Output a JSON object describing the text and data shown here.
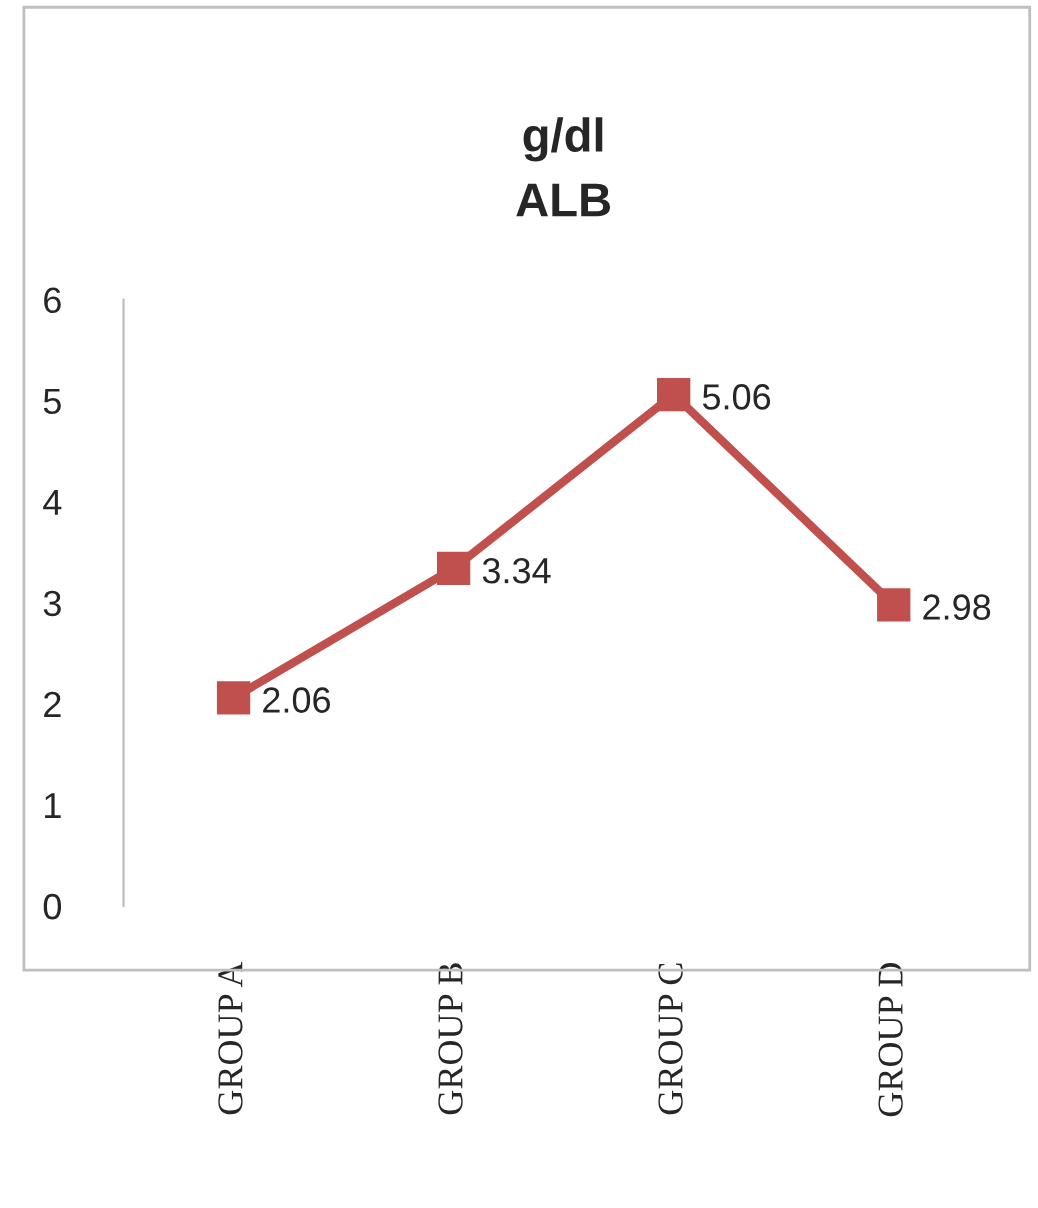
{
  "chart_data": {
    "type": "line",
    "title": "g/dl\nALB",
    "categories": [
      "GROUP A",
      "GROUP B",
      "GROUP C",
      "GROUP D"
    ],
    "series": [
      {
        "color": "#c0504d",
        "values": [
          2.06,
          3.34,
          5.06,
          2.98
        ]
      }
    ],
    "ylim": [
      0,
      6
    ],
    "yticks": [
      0,
      1,
      2,
      3,
      4,
      5,
      6
    ],
    "grid": false,
    "marker": "square",
    "data_labels": true
  }
}
